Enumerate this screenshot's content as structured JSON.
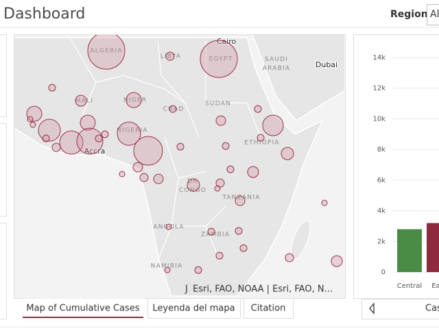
{
  "header": {
    "title": "Dashboard",
    "region_label": "Region",
    "region_value": "Al"
  },
  "map": {
    "countries": [
      "ALGERIA",
      "LIBYA",
      "EGYPT",
      "SAUDI ARABIA",
      "MALI",
      "NIGER",
      "CHAD",
      "SUDAN",
      "NIGERIA",
      "ETHIOPIA",
      "DR CONGO",
      "TANZANIA",
      "ANGOLA",
      "ZAMBIA",
      "NAMIBIA"
    ],
    "cities": [
      "Cairo",
      "Dubai",
      "Accra"
    ],
    "attribution": "Esri, FAO, NOAA | Esri, FAO, N…"
  },
  "tabs": [
    "Map of Cumulative Cases",
    "Leyenda del mapa",
    "Citation"
  ],
  "chart": {
    "type": "bar",
    "categories": [
      "Central",
      "East"
    ],
    "values": [
      2800,
      3200
    ],
    "colors": [
      "#4a8c45",
      "#8e2a3c"
    ],
    "ylim": [
      0,
      14000
    ],
    "yticks": [
      0,
      {
        "value": 2000,
        "label": "2k"
      },
      {
        "value": 4000,
        "label": "4k"
      },
      {
        "value": 6000,
        "label": "6k"
      },
      {
        "value": 8000,
        "label": "8k"
      },
      {
        "value": 10000,
        "label": "10k"
      },
      {
        "value": 12000,
        "label": "12k"
      },
      {
        "value": 14000,
        "label": "14k"
      }
    ],
    "grid": true
  },
  "chart_tab": "Cas"
}
